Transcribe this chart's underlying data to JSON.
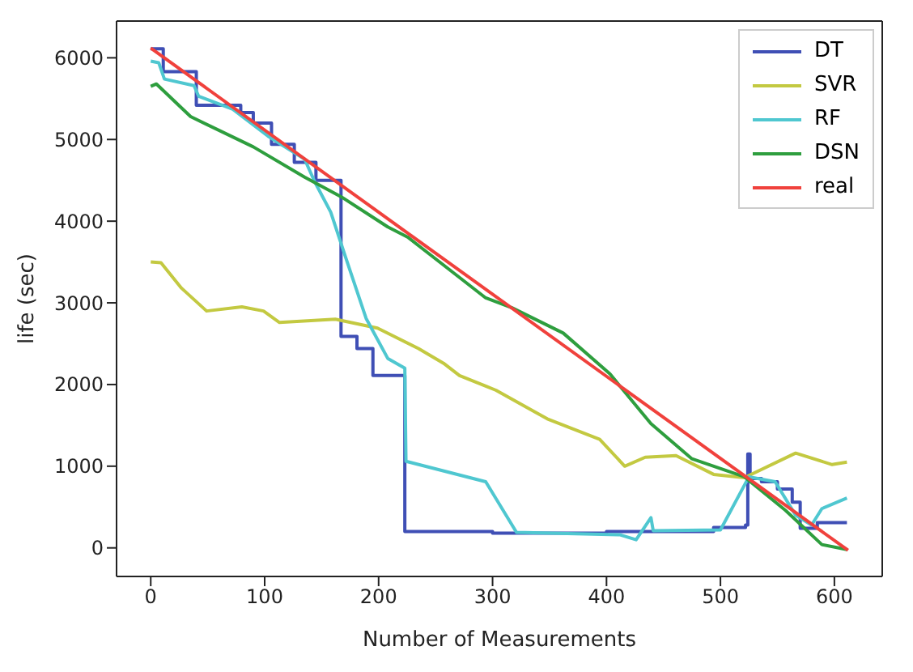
{
  "chart_data": {
    "type": "line",
    "xlabel": "Number of Measurements",
    "ylabel": "life (sec)",
    "xlim": [
      -30,
      642
    ],
    "ylim": [
      -350,
      6450
    ],
    "xticks": [
      0,
      100,
      200,
      300,
      400,
      500,
      600
    ],
    "yticks": [
      0,
      1000,
      2000,
      3000,
      4000,
      5000,
      6000
    ],
    "grid": false,
    "legend": "top right",
    "marker": "none",
    "line_style": "solid",
    "series": [
      {
        "name": "DT",
        "type": "step",
        "color": "#3f4fb5",
        "x": [
          0,
          11,
          40,
          79,
          90,
          106,
          126,
          145,
          167,
          181,
          195,
          223,
          300,
          400,
          494,
          522,
          524,
          526,
          536,
          550,
          563,
          570,
          585,
          611
        ],
        "values": [
          6110,
          5830,
          5420,
          5330,
          5200,
          4940,
          4720,
          4500,
          2590,
          2440,
          2110,
          200,
          180,
          200,
          250,
          280,
          1150,
          850,
          810,
          720,
          560,
          240,
          310,
          310
        ]
      },
      {
        "name": "SVR",
        "color": "#c3c941",
        "x": [
          0,
          9,
          27,
          49,
          80,
          99,
          113,
          162,
          199,
          235,
          257,
          271,
          294,
          303,
          348,
          394,
          416,
          434,
          461,
          494,
          521,
          566,
          598,
          611
        ],
        "values": [
          3500,
          3490,
          3180,
          2900,
          2950,
          2900,
          2760,
          2800,
          2690,
          2440,
          2260,
          2110,
          1980,
          1930,
          1580,
          1330,
          1000,
          1110,
          1130,
          900,
          860,
          1160,
          1020,
          1050
        ]
      },
      {
        "name": "RF",
        "color": "#4fc7d0",
        "x": [
          0,
          7,
          12,
          38,
          42,
          72,
          103,
          135,
          144,
          158,
          171,
          189,
          208,
          223,
          224,
          294,
          321,
          412,
          426,
          439,
          441,
          500,
          525,
          548,
          566,
          580,
          589,
          611
        ],
        "values": [
          5960,
          5940,
          5740,
          5660,
          5530,
          5370,
          5040,
          4760,
          4480,
          4110,
          3560,
          2810,
          2320,
          2200,
          1060,
          810,
          190,
          160,
          100,
          370,
          210,
          220,
          870,
          810,
          400,
          280,
          480,
          610
        ]
      },
      {
        "name": "DSN",
        "color": "#2e9e3e",
        "x": [
          0,
          5,
          35,
          90,
          135,
          167,
          208,
          226,
          271,
          294,
          317,
          362,
          403,
          439,
          475,
          521,
          557,
          589,
          611
        ],
        "values": [
          5650,
          5680,
          5280,
          4910,
          4540,
          4300,
          3930,
          3800,
          3310,
          3060,
          2940,
          2630,
          2130,
          1520,
          1090,
          870,
          460,
          40,
          -20
        ]
      },
      {
        "name": "real",
        "color": "#f0413c",
        "x": [
          0,
          612
        ],
        "values": [
          6120,
          -30
        ]
      }
    ]
  }
}
